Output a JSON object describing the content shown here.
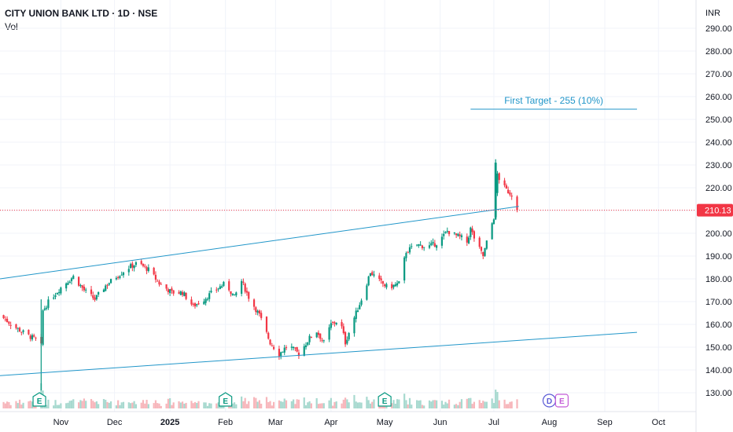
{
  "header": {
    "title": "CITY UNION BANK LTD · 1D · NSE",
    "volume_label": "Vol"
  },
  "colors": {
    "up": "#089981",
    "down": "#f23645",
    "trendline": "#2196c9",
    "annotation": "#2196c9",
    "price_label_bg": "#f23645",
    "vol_up": "#a7d9cf",
    "vol_down": "#f7b6bb",
    "grid": "#f0f3fa"
  },
  "chart_data": {
    "type": "candlestick",
    "currency": "INR",
    "y_ticks": [
      130,
      140,
      150,
      160,
      170,
      180,
      190,
      200,
      210,
      220,
      230,
      240,
      250,
      260,
      270,
      280,
      290
    ],
    "y_tick_labels": [
      "130.00",
      "140.00",
      "150.00",
      "160.00",
      "170.00",
      "180.00",
      "190.00",
      "200.00",
      "210.00",
      "220.00",
      "230.00",
      "240.00",
      "250.00",
      "260.00",
      "270.00",
      "280.00",
      "290.00"
    ],
    "ylim": [
      125,
      296
    ],
    "x_ticks": [
      {
        "label": "Nov",
        "date": "2024-11-01",
        "bold": false
      },
      {
        "label": "Dec",
        "date": "2024-12-01",
        "bold": false
      },
      {
        "label": "2025",
        "date": "2025-01-01",
        "bold": true
      },
      {
        "label": "Feb",
        "date": "2025-02-01",
        "bold": false
      },
      {
        "label": "Mar",
        "date": "2025-03-01",
        "bold": false
      },
      {
        "label": "Apr",
        "date": "2025-04-01",
        "bold": false
      },
      {
        "label": "May",
        "date": "2025-05-01",
        "bold": false
      },
      {
        "label": "Jun",
        "date": "2025-06-01",
        "bold": false
      },
      {
        "label": "Jul",
        "date": "2025-07-01",
        "bold": false
      },
      {
        "label": "Aug",
        "date": "2025-08-01",
        "bold": false
      },
      {
        "label": "Sep",
        "date": "2025-09-01",
        "bold": false
      },
      {
        "label": "Oct",
        "date": "2025-10-01",
        "bold": false
      }
    ],
    "xlim": [
      "2024-09-28",
      "2025-10-22"
    ],
    "last_price": 210.13,
    "last_price_label": "210.13",
    "trendlines": [
      {
        "name": "channel-upper",
        "start": {
          "date": "2024-09-28",
          "price": 180.0
        },
        "end": {
          "date": "2025-07-15",
          "price": 211.8
        }
      },
      {
        "name": "channel-lower",
        "start": {
          "date": "2024-09-28",
          "price": 137.5
        },
        "end": {
          "date": "2025-09-19",
          "price": 156.5
        }
      }
    ],
    "target": {
      "label": "First Target - 255 (10%)",
      "price": 254.5,
      "start": "2025-06-18",
      "end": "2025-09-19"
    },
    "event_markers": [
      {
        "letter": "E",
        "date": "2024-10-20",
        "kind": "earnings"
      },
      {
        "letter": "E",
        "date": "2025-02-01",
        "kind": "earnings"
      },
      {
        "letter": "E",
        "date": "2025-05-01",
        "kind": "earnings"
      },
      {
        "letter": "D",
        "date": "2025-08-01",
        "kind": "dividend"
      },
      {
        "letter": "E",
        "date": "2025-08-08",
        "kind": "earnings"
      }
    ],
    "anchors": [
      [
        "2024-09-28",
        164
      ],
      [
        "2024-10-06",
        159
      ],
      [
        "2024-10-14",
        155
      ],
      [
        "2024-10-19",
        153
      ],
      [
        "2024-10-20",
        135
      ],
      [
        "2024-10-22",
        166
      ],
      [
        "2024-10-26",
        171
      ],
      [
        "2024-11-02",
        177
      ],
      [
        "2024-11-08",
        181
      ],
      [
        "2024-11-14",
        175
      ],
      [
        "2024-11-20",
        171
      ],
      [
        "2024-11-26",
        177
      ],
      [
        "2024-12-02",
        181
      ],
      [
        "2024-12-09",
        185
      ],
      [
        "2024-12-14",
        187
      ],
      [
        "2024-12-20",
        184
      ],
      [
        "2024-12-26",
        178
      ],
      [
        "2025-01-02",
        174
      ],
      [
        "2025-01-08",
        174
      ],
      [
        "2025-01-14",
        168
      ],
      [
        "2025-01-20",
        171
      ],
      [
        "2025-01-26",
        175
      ],
      [
        "2025-02-01",
        178
      ],
      [
        "2025-02-06",
        172
      ],
      [
        "2025-02-10",
        179
      ],
      [
        "2025-02-14",
        172
      ],
      [
        "2025-02-20",
        164
      ],
      [
        "2025-02-26",
        152
      ],
      [
        "2025-03-03",
        147
      ],
      [
        "2025-03-08",
        151
      ],
      [
        "2025-03-14",
        147
      ],
      [
        "2025-03-20",
        154
      ],
      [
        "2025-03-24",
        157
      ],
      [
        "2025-03-28",
        152
      ],
      [
        "2025-04-01",
        160
      ],
      [
        "2025-04-06",
        162
      ],
      [
        "2025-04-09",
        152
      ],
      [
        "2025-04-14",
        163
      ],
      [
        "2025-04-18",
        171
      ],
      [
        "2025-04-23",
        183
      ],
      [
        "2025-04-28",
        179
      ],
      [
        "2025-05-03",
        176
      ],
      [
        "2025-05-09",
        178
      ],
      [
        "2025-05-13",
        192
      ],
      [
        "2025-05-19",
        195
      ],
      [
        "2025-05-25",
        194
      ],
      [
        "2025-05-31",
        196
      ],
      [
        "2025-06-05",
        201
      ],
      [
        "2025-06-10",
        199
      ],
      [
        "2025-06-13",
        198
      ],
      [
        "2025-06-15",
        193
      ],
      [
        "2025-06-18",
        202
      ],
      [
        "2025-06-21",
        196
      ],
      [
        "2025-06-25",
        190
      ],
      [
        "2025-06-28",
        199
      ],
      [
        "2025-07-01",
        207
      ],
      [
        "2025-07-03",
        226
      ],
      [
        "2025-07-05",
        222
      ],
      [
        "2025-07-08",
        219
      ],
      [
        "2025-07-11",
        217
      ],
      [
        "2025-07-14",
        210.13
      ]
    ]
  }
}
